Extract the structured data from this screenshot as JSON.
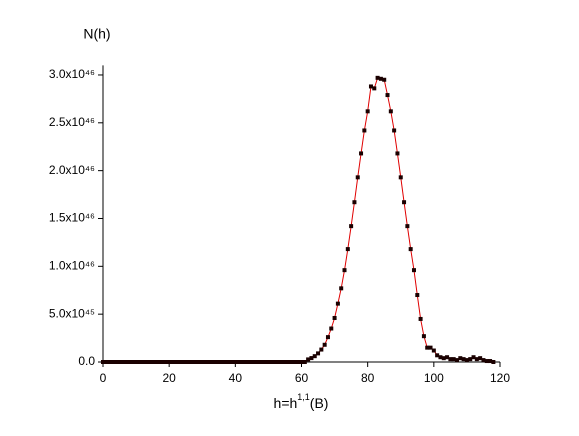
{
  "chart_data": {
    "type": "line",
    "ylabel": "N(h)",
    "xlabel": [
      "h=h",
      "1,1",
      "(B)"
    ],
    "x": [
      0,
      1,
      2,
      3,
      4,
      5,
      6,
      7,
      8,
      9,
      10,
      11,
      12,
      13,
      14,
      15,
      16,
      17,
      18,
      19,
      20,
      21,
      22,
      23,
      24,
      25,
      26,
      27,
      28,
      29,
      30,
      31,
      32,
      33,
      34,
      35,
      36,
      37,
      38,
      39,
      40,
      41,
      42,
      43,
      44,
      45,
      46,
      47,
      48,
      49,
      50,
      51,
      52,
      53,
      54,
      55,
      56,
      57,
      58,
      59,
      60,
      61,
      62,
      63,
      64,
      65,
      66,
      67,
      68,
      69,
      70,
      71,
      72,
      73,
      74,
      75,
      76,
      77,
      78,
      79,
      80,
      81,
      82,
      83,
      84,
      85,
      86,
      87,
      88,
      89,
      90,
      91,
      92,
      93,
      94,
      95,
      96,
      97,
      98,
      99,
      100,
      101,
      102,
      103,
      104,
      105,
      106,
      107,
      108,
      109,
      110,
      111,
      112,
      113,
      114,
      115,
      116,
      117,
      118
    ],
    "series": [
      {
        "color": "#e00000",
        "marker_color": "#1a0000",
        "values": [
          0,
          0,
          0,
          0,
          0,
          0,
          0,
          0,
          0,
          0,
          0,
          0,
          0,
          0,
          0,
          0,
          0,
          0,
          0,
          0,
          0,
          0,
          0,
          0,
          0,
          0,
          0,
          0,
          0,
          0,
          0,
          0,
          0,
          0,
          0,
          0,
          0,
          0,
          0,
          0,
          0,
          0,
          0,
          0,
          0,
          0,
          0,
          0,
          0,
          0,
          0,
          0,
          0,
          0,
          0,
          0,
          0,
          0,
          0,
          0,
          0,
          0,
          2.7e+44,
          4.1e+44,
          6.1e+44,
          9e+44,
          1.3e+45,
          1.8e+45,
          2.6e+45,
          3.5e+45,
          4.6e+45,
          6.1e+45,
          7.7e+45,
          9.6e+45,
          1.18e+46,
          1.42e+46,
          1.67e+46,
          1.93e+46,
          2.18e+46,
          2.42e+46,
          2.62e+46,
          2.88e+46,
          2.86e+46,
          2.97e+46,
          2.96e+46,
          2.95e+46,
          2.79e+46,
          2.62e+46,
          2.42e+46,
          2.18e+46,
          1.93e+46,
          1.67e+46,
          1.42e+46,
          1.18e+46,
          9.6e+45,
          7e+45,
          4.5e+45,
          2.7e+45,
          1.5e+45,
          1.5e+45,
          1.2e+45,
          7e+44,
          5e+44,
          4e+44,
          5e+44,
          3e+44,
          3e+44,
          2e+44,
          4e+44,
          3e+44,
          2e+44,
          3e+44,
          5e+44,
          3e+44,
          4e+44,
          2e+44,
          1e+44,
          1e+44,
          0
        ]
      }
    ],
    "xlim": [
      0,
      120
    ],
    "xticks": [
      0,
      20,
      40,
      60,
      80,
      100,
      120
    ],
    "ylim": [
      0,
      3.1e+46
    ],
    "yticks": [
      {
        "value": 0,
        "label": "0.0"
      },
      {
        "value": 5e+45,
        "label": "5.0x10⁴⁵"
      },
      {
        "value": 1e+46,
        "label": "1.0x10⁴⁶"
      },
      {
        "value": 1.5e+46,
        "label": "1.5x10⁴⁶"
      },
      {
        "value": 2e+46,
        "label": "2.0x10⁴⁶"
      },
      {
        "value": 2.5e+46,
        "label": "2.5x10⁴⁶"
      },
      {
        "value": 3e+46,
        "label": "3.0x10⁴⁶"
      }
    ],
    "grid": false
  }
}
